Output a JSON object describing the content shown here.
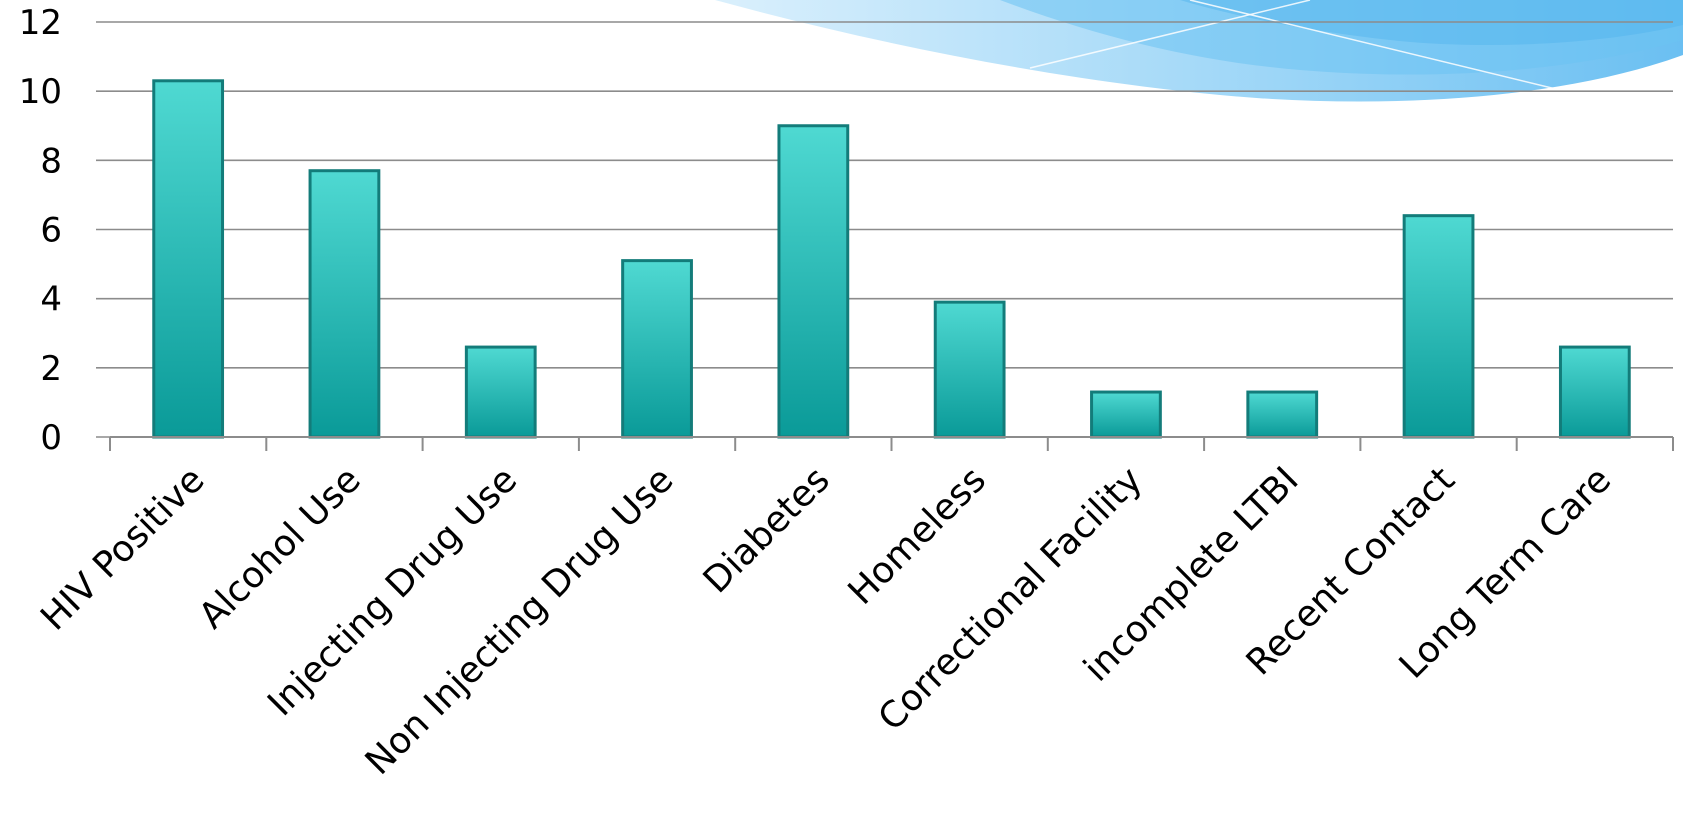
{
  "chart_data": {
    "type": "bar",
    "title": "",
    "xlabel": "",
    "ylabel": "",
    "categories": [
      "HIV Positive",
      "Alcohol Use",
      "Injecting Drug Use",
      "Non Injecting Drug Use",
      "Diabetes",
      "Homeless",
      "Correctional Facility",
      "incomplete LTBI",
      "Recent Contact",
      "Long Term Care"
    ],
    "values": [
      10.3,
      7.7,
      2.6,
      5.1,
      9.0,
      3.9,
      1.3,
      1.3,
      6.4,
      2.6
    ],
    "ylim": [
      0,
      12
    ],
    "yticks": [
      "0",
      "2",
      "4",
      "6",
      "8",
      "10",
      "12"
    ],
    "grid": true,
    "legend": "none",
    "colors": {
      "bar_top": "#4fd9d2",
      "bar_bottom": "#0a9a98",
      "bar_stroke": "#137c7a",
      "grid": "#8c8c8c",
      "axis": "#8c8c8c",
      "swoosh_light": "#bfe4fb",
      "swoosh_mid": "#8fd0f6",
      "swoosh_dark": "#5ab8f0"
    }
  }
}
